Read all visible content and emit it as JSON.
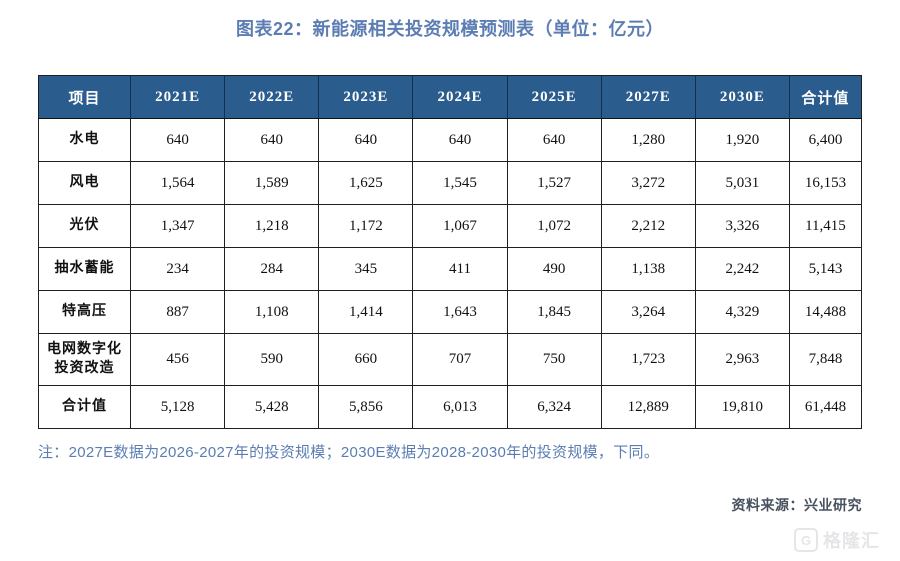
{
  "page": {
    "title": "图表22：新能源相关投资规模预测表（单位：亿元）",
    "note": "注：2027E数据为2026-2027年的投资规模；2030E数据为2028-2030年的投资规模，下同。",
    "source": "资料来源：兴业研究",
    "watermark": "格隆汇",
    "watermark_icon": "G"
  },
  "colors": {
    "title_blue": "#5b7db3",
    "header_bg": "#2b5c8e",
    "header_text": "#ffffff",
    "cell_border": "#1f1f1f",
    "note_blue": "#5b7db3",
    "source_gray": "#47525e",
    "watermark_gray": "#e6e6e8"
  },
  "chart_data": {
    "type": "table",
    "title": "图表22：新能源相关投资规模预测表（单位：亿元）",
    "unit": "亿元",
    "columns": [
      "项目",
      "2021E",
      "2022E",
      "2023E",
      "2024E",
      "2025E",
      "2027E",
      "2030E",
      "合计值"
    ],
    "rows": [
      {
        "label": "水电",
        "values": [
          "640",
          "640",
          "640",
          "640",
          "640",
          "1,280",
          "1,920",
          "6,400"
        ]
      },
      {
        "label": "风电",
        "values": [
          "1,564",
          "1,589",
          "1,625",
          "1,545",
          "1,527",
          "3,272",
          "5,031",
          "16,153"
        ]
      },
      {
        "label": "光伏",
        "values": [
          "1,347",
          "1,218",
          "1,172",
          "1,067",
          "1,072",
          "2,212",
          "3,326",
          "11,415"
        ]
      },
      {
        "label": "抽水蓄能",
        "values": [
          "234",
          "284",
          "345",
          "411",
          "490",
          "1,138",
          "2,242",
          "5,143"
        ]
      },
      {
        "label": "特高压",
        "values": [
          "887",
          "1,108",
          "1,414",
          "1,643",
          "1,845",
          "3,264",
          "4,329",
          "14,488"
        ]
      },
      {
        "label": "电网数字化投资改造",
        "values": [
          "456",
          "590",
          "660",
          "707",
          "750",
          "1,723",
          "2,963",
          "7,848"
        ],
        "tall": true
      },
      {
        "label": "合计值",
        "values": [
          "5,128",
          "5,428",
          "5,856",
          "6,013",
          "6,324",
          "12,889",
          "19,810",
          "61,448"
        ]
      }
    ]
  }
}
